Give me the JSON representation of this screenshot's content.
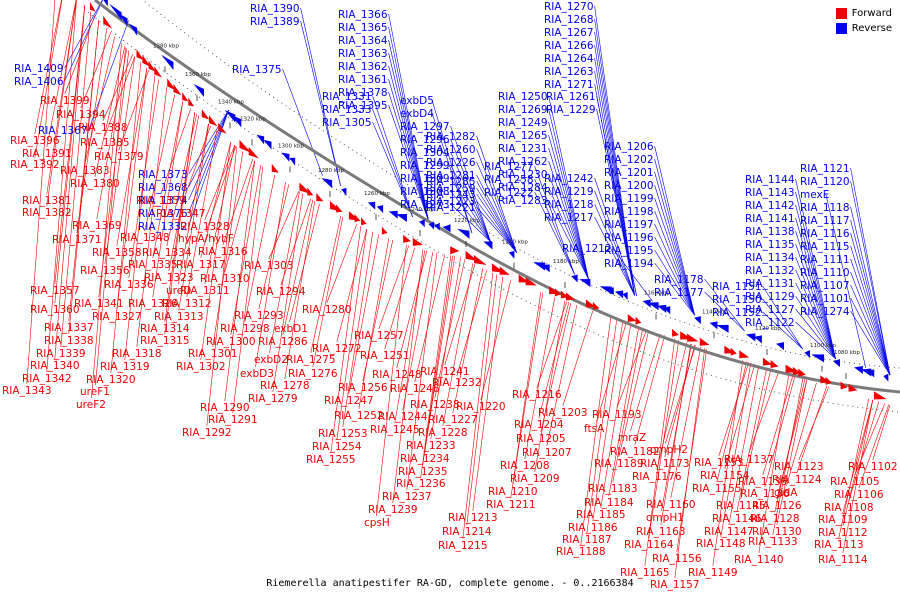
{
  "legend": {
    "forward": "Forward",
    "reverse": "Reverse"
  },
  "colors": {
    "forward": "#ee0000",
    "reverse": "#0000ee",
    "backbone": "#7a7a7a"
  },
  "caption": "Riemerella anatipestifer RA-GD, complete genome. - 0..2166384",
  "ticks": [
    "1080 kbp",
    "1100 kbp",
    "1120 kbp",
    "1140 kbp",
    "1160 kbp",
    "1180 kbp",
    "1200 kbp",
    "1220 kbp",
    "1240 kbp",
    "1260 kbp",
    "1280 kbp",
    "1300 kbp",
    "1320 kbp",
    "1340 kbp",
    "1360 kbp",
    "1380 kbp"
  ],
  "reverse_labels": [
    "RIA_1409",
    "RIA_1406",
    "RIA_1390",
    "RIA_1389",
    "RIA_1366",
    "RIA_1365",
    "RIA_1364",
    "RIA_1363",
    "RIA_1362",
    "RIA_1361",
    "RIA_1378",
    "RIA_1395",
    "RIA_1375",
    "RIA_1367",
    "RIA_1373",
    "RIA_1368",
    "RIA_1374",
    "RIA_1376",
    "RIA_1332",
    "RIA_1331",
    "RIA_1333",
    "RIA_1305",
    "exbD5",
    "exbD4",
    "RIA_1297",
    "RIA_1296",
    "RIA_1304",
    "RIA_1299",
    "RIA_1309",
    "RIA_1308",
    "RIA_1273",
    "RIA_1270",
    "RIA_1268",
    "RIA_1267",
    "RIA_1266",
    "RIA_1264",
    "RIA_1263",
    "RIA_1271",
    "RIA_1250",
    "RIA_1269",
    "RIA_1249",
    "RIA_1265",
    "RIA_1231",
    "RIA_1262",
    "RIA_1230",
    "RIA_1284",
    "RIA_1283",
    "RIA_1261",
    "RIA_1229",
    "RIA_1282",
    "RIA_1260",
    "RIA_1226",
    "RIA_1281",
    "RIA_1259",
    "RIA_1223",
    "RIA_1277",
    "RIA_1258",
    "RIA_1222",
    "RIA_1285",
    "RIA_1243",
    "RIA_1221",
    "RIA_1242",
    "RIA_1219",
    "RIA_1218",
    "RIA_1217",
    "RIA_1212",
    "RIA_1206",
    "RIA_1202",
    "RIA_1201",
    "RIA_1200",
    "RIA_1199",
    "RIA_1198",
    "RIA_1197",
    "RIA_1196",
    "RIA_1195",
    "RIA_1194",
    "RIA_1178",
    "RIA_1177",
    "RIA_1151",
    "RIA_1150",
    "RIA_1152",
    "RIA_1144",
    "RIA_1143",
    "RIA_1142",
    "RIA_1141",
    "RIA_1138",
    "RIA_1135",
    "RIA_1134",
    "RIA_1132",
    "RIA_1131",
    "RIA_1129",
    "RIA_1127",
    "RIA_1122",
    "RIA_1121",
    "RIA_1120",
    "mexE",
    "RIA_1118",
    "RIA_1117",
    "RIA_1116",
    "RIA_1115",
    "RIA_1111",
    "RIA_1110",
    "RIA_1107",
    "RIA_1101",
    "RIA_1274"
  ],
  "forward_labels": [
    "RIA_1399",
    "RIA_1394",
    "RIA_1388",
    "RIA_1396",
    "RIA_1385",
    "RIA_1391",
    "RIA_1379",
    "RIA_1392",
    "RIA_1383",
    "RIA_1380",
    "RIA_1381",
    "RIA_1359",
    "RIA_1382",
    "RIA_1347",
    "RIA_1369",
    "RIA_1328",
    "RIA_1348",
    "hypA/hybF",
    "RIA_1371",
    "RIA_1358",
    "RIA_1334",
    "RIA_1316",
    "RIA_1335",
    "RIA_1317",
    "RIA_1303",
    "RIA_1356",
    "RIA_1323",
    "RIA_1310",
    "RIA_1336",
    "ureD",
    "RIA_1311",
    "RIA_1357",
    "RIA_1294",
    "RIA_1341",
    "RIA_1326",
    "RIA_1312",
    "RIA_1360",
    "RIA_1327",
    "RIA_1313",
    "RIA_1293",
    "RIA_1280",
    "RIA_1337",
    "RIA_1314",
    "RIA_1298",
    "exbD1",
    "RIA_1338",
    "RIA_1315",
    "RIA_1300",
    "RIA_1286",
    "RIA_1272",
    "RIA_1257",
    "RIA_1339",
    "RIA_1318",
    "RIA_1301",
    "exbD2",
    "RIA_1275",
    "RIA_1340",
    "RIA_1319",
    "RIA_1302",
    "exbD3",
    "RIA_1276",
    "RIA_1251",
    "RIA_1342",
    "RIA_1320",
    "RIA_1278",
    "RIA_1248",
    "RIA_1241",
    "RIA_1343",
    "ureF1",
    "RIA_1279",
    "RIA_1256",
    "RIA_1246",
    "RIA_1232",
    "ureF2",
    "RIA_1247",
    "RIA_1238",
    "RIA_1216",
    "RIA_1290",
    "RIA_1252",
    "RIA_1244",
    "RIA_1220",
    "RIA_1291",
    "RIA_1245",
    "RIA_1227",
    "RIA_1203",
    "RIA_1292",
    "RIA_1253",
    "RIA_1228",
    "RIA_1204",
    "RIA_1193",
    "RIA_1254",
    "RIA_1233",
    "RIA_1205",
    "ftsA",
    "RIA_1255",
    "RIA_1234",
    "RIA_1207",
    "mraZ",
    "RIA_1235",
    "RIA_1208",
    "RIA_1182",
    "RIA_1236",
    "RIA_1209",
    "RIA_1189",
    "RIA_1173",
    "RIA_1237",
    "RIA_1210",
    "RIA_1176",
    "RIA_1183",
    "RIA_1239",
    "RIA_1211",
    "RIA_1184",
    "cpsH",
    "RIA_1213",
    "RIA_1185",
    "RIA_1214",
    "RIA_1186",
    "RIA_1215",
    "RIA_1187",
    "RIA_1188",
    "ompH2",
    "RIA_1153",
    "RIA_1137",
    "RIA_1154",
    "RIA_1139",
    "RIA_1123",
    "RIA_1155",
    "RIA_1136",
    "RIA_1124",
    "RIA_1102",
    "RIA_1160",
    "RIA_1145",
    "gidA",
    "RIA_1105",
    "ompH1",
    "RIA_1146",
    "RIA_1126",
    "RIA_1106",
    "RIA_1163",
    "RIA_1147",
    "RIA_1128",
    "RIA_1108",
    "RIA_1164",
    "RIA_1148",
    "RIA_1130",
    "RIA_1109",
    "RIA_1156",
    "RIA_1133",
    "RIA_1112",
    "RIA_1165",
    "RIA_1149",
    "RIA_1140",
    "RIA_1113",
    "RIA_1157",
    "RIA_1114"
  ]
}
